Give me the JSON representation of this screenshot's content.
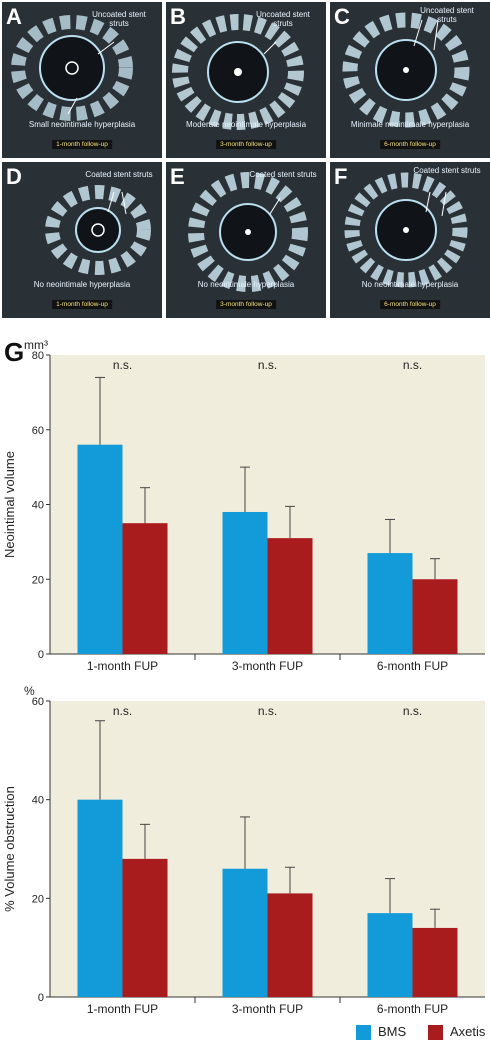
{
  "panels": [
    {
      "letter": "A",
      "annot": "Uncoated stent struts",
      "desc": "Small neointimale hyperplasia",
      "tag": "1-month follow-up"
    },
    {
      "letter": "B",
      "annot": "Uncoated stent struts",
      "desc": "Moderate neointimale hyperplasia",
      "tag": "3-month follow-up"
    },
    {
      "letter": "C",
      "annot": "Uncoated stent struts",
      "desc": "Minimale neointimale hyperplasia",
      "tag": "6-month follow-up"
    },
    {
      "letter": "D",
      "annot": "Coated stent struts",
      "desc": "No neointimale hyperplasia",
      "tag": "1-month follow-up"
    },
    {
      "letter": "E",
      "annot": "Coated stent struts",
      "desc": "No neointimale hyperplasia",
      "tag": "3-month follow-up"
    },
    {
      "letter": "F",
      "annot": "Coated stent struts",
      "desc": "No neointimale hyperplasia",
      "tag": "6-month follow-up"
    }
  ],
  "panel_g_letter": "G",
  "chart_data": [
    {
      "type": "bar",
      "categories": [
        "1-month FUP",
        "3-month FUP",
        "6-month FUP"
      ],
      "series": [
        {
          "name": "BMS",
          "values": [
            56,
            38,
            27
          ],
          "errors": [
            18,
            12,
            9
          ],
          "color": "#139bd9"
        },
        {
          "name": "Axetis",
          "values": [
            35,
            31,
            20
          ],
          "errors": [
            9.5,
            8.5,
            5.5
          ],
          "color": "#a81c1e"
        }
      ],
      "annotations": [
        "n.s.",
        "n.s.",
        "n.s."
      ],
      "ylabel": "Neointimal volume",
      "unit": "mm³",
      "ylim": [
        0,
        80
      ],
      "yticks": [
        0,
        20,
        40,
        60,
        80
      ],
      "grid": false,
      "background": "#f1eddc"
    },
    {
      "type": "bar",
      "categories": [
        "1-month FUP",
        "3-month FUP",
        "6-month FUP"
      ],
      "series": [
        {
          "name": "BMS",
          "values": [
            40,
            26,
            17
          ],
          "errors": [
            16,
            10.5,
            7
          ],
          "color": "#139bd9"
        },
        {
          "name": "Axetis",
          "values": [
            28,
            21,
            14
          ],
          "errors": [
            7,
            5.3,
            3.8
          ],
          "color": "#a81c1e"
        }
      ],
      "annotations": [
        "n.s.",
        "n.s.",
        "n.s."
      ],
      "ylabel": "% Volume obstruction",
      "unit": "%",
      "ylim": [
        0,
        60
      ],
      "yticks": [
        0,
        20,
        40,
        60
      ],
      "grid": false,
      "background": "#f1eddc"
    }
  ],
  "legend": {
    "position": "bottom-right",
    "items": [
      {
        "label": "BMS",
        "color": "#139bd9"
      },
      {
        "label": "Axetis",
        "color": "#a81c1e"
      }
    ]
  }
}
